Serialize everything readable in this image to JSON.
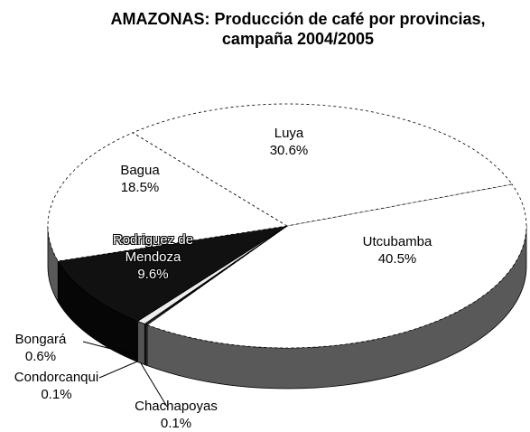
{
  "chart_data": {
    "type": "pie",
    "title": "AMAZONAS:  Producción de café por provincias, campaña 2004/2005",
    "categories": [
      "Utcubamba",
      "Chachapoyas",
      "Condorcanqui",
      "Bongará",
      "Rodriguez de Mendoza",
      "Bagua",
      "Luya"
    ],
    "values": [
      40.5,
      0.1,
      0.1,
      0.6,
      9.6,
      18.5,
      30.6
    ],
    "value_labels": [
      "40.5%",
      "0.1%",
      "0.1%",
      "0.6%",
      "9.6%",
      "18.5%",
      "30.6%"
    ],
    "colors": [
      "#ffffff",
      "#dddddd",
      "#999999",
      "#eeeeee",
      "#111111",
      "#ffffff",
      "#ffffff"
    ]
  }
}
